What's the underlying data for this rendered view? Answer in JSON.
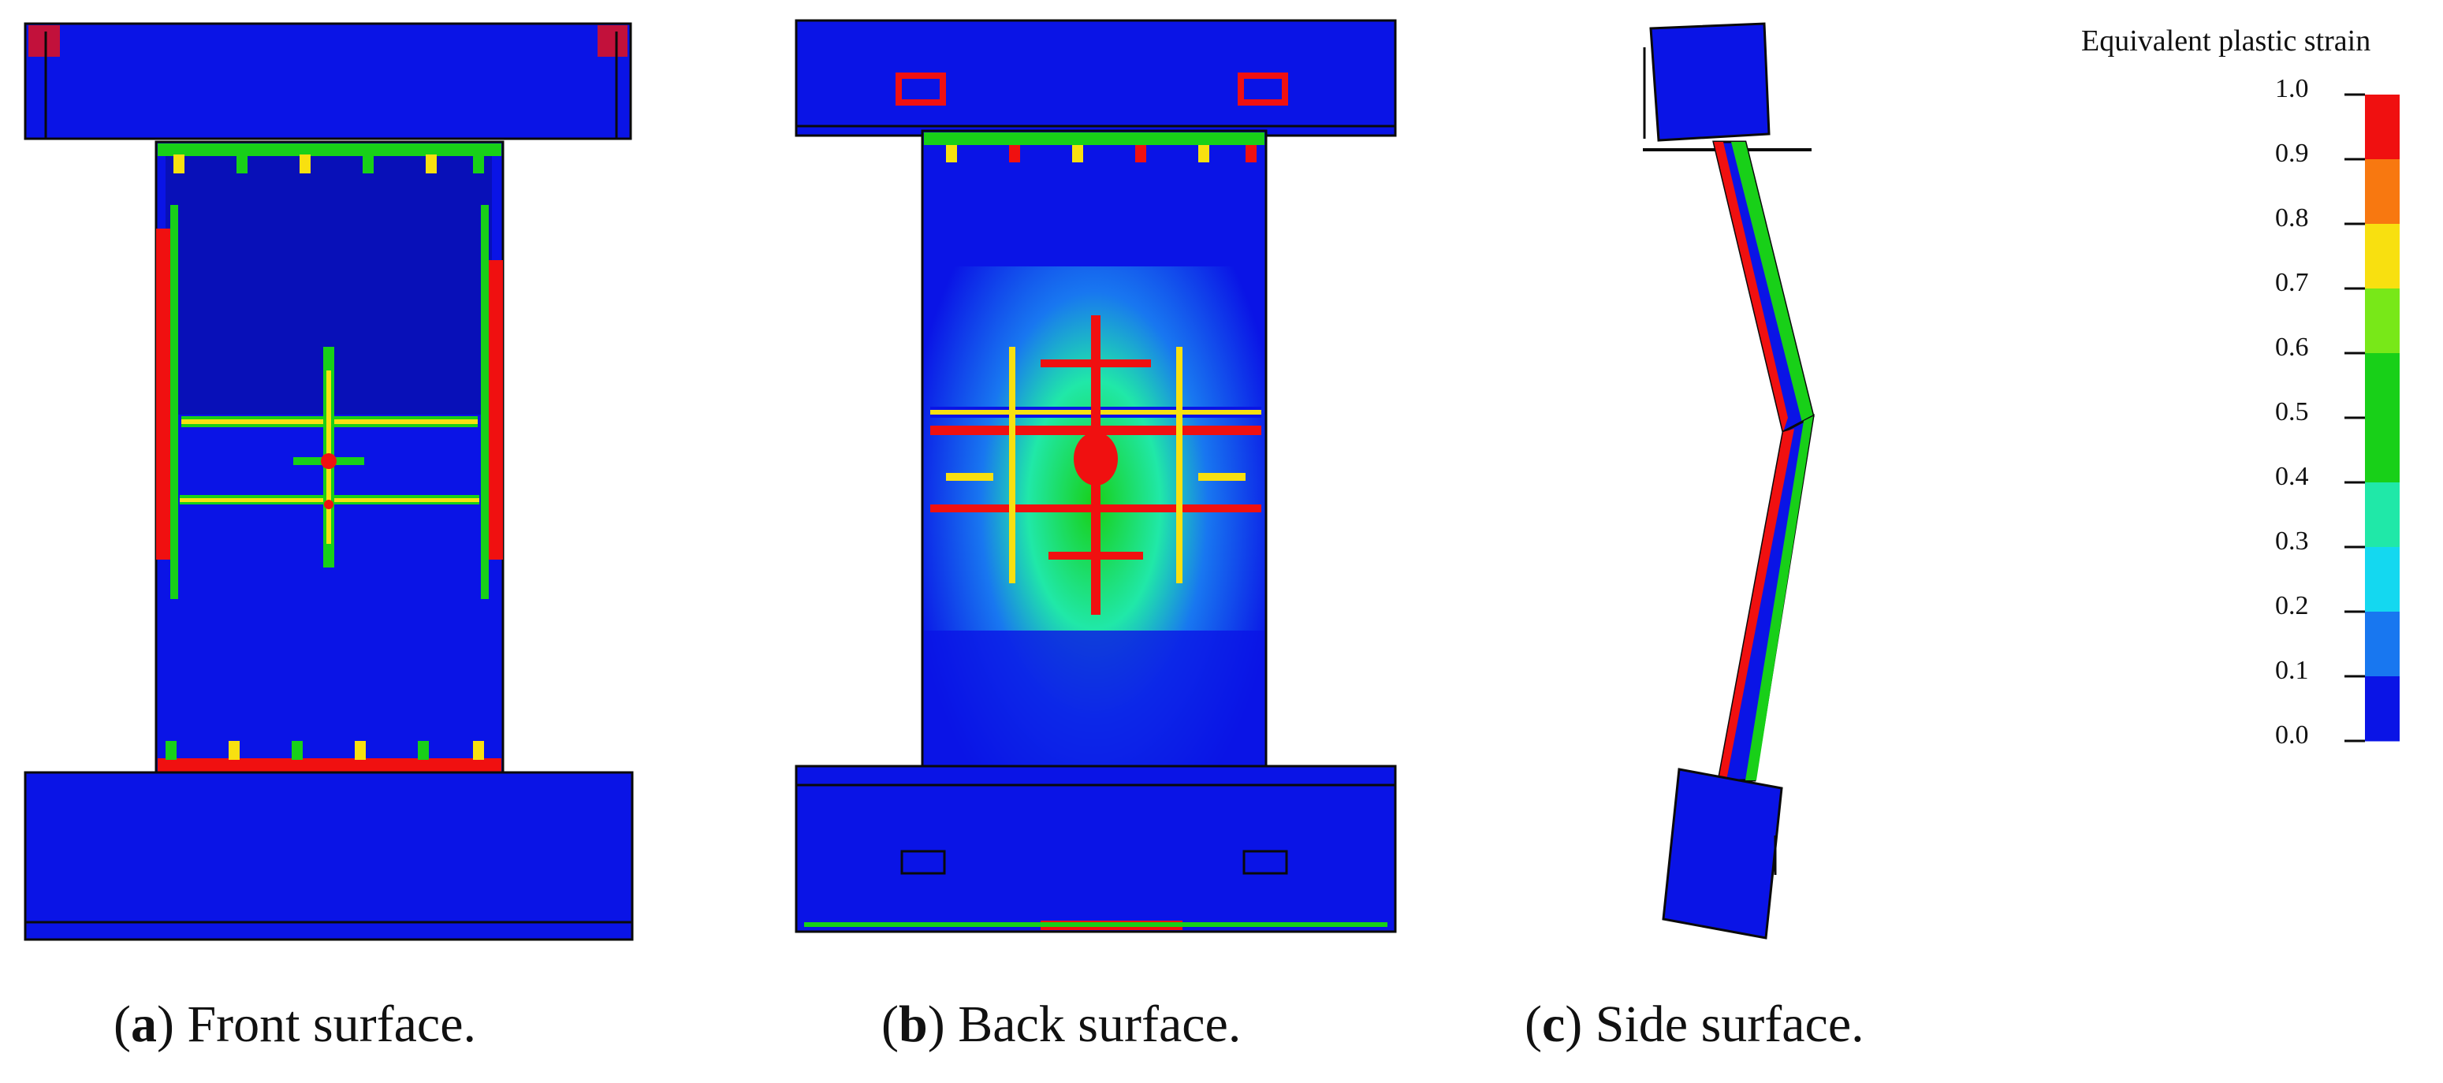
{
  "colors": {
    "blue": "#0a14e6",
    "dark_blue": "#0810b8",
    "mid_blue": "#1877f0",
    "cyan": "#14d8f0",
    "teal": "#20e8a8",
    "green": "#18d018",
    "light_green": "#78e818",
    "yellow": "#f8e010",
    "orange": "#f87810",
    "red": "#f01010",
    "outline": "#0a0a0a"
  },
  "legend": {
    "title": "Equivalent plastic strain",
    "ticks": [
      "1.0",
      "0.9",
      "0.8",
      "0.7",
      "0.6",
      "0.5",
      "0.4",
      "0.3",
      "0.2",
      "0.1",
      "0.0"
    ],
    "band_colors": [
      "#f01010",
      "#f87810",
      "#f8e010",
      "#78e818",
      "#18d018",
      "#18d018",
      "#20e8a8",
      "#14d8f0",
      "#1877f0",
      "#0a14e6"
    ]
  },
  "captions": [
    {
      "letter": "a",
      "open": "(",
      "close": ")",
      "text": " Front surface."
    },
    {
      "letter": "b",
      "open": "(",
      "close": ")",
      "text": " Back surface."
    },
    {
      "letter": "c",
      "open": "(",
      "close": ")",
      "text": " Side surface."
    }
  ]
}
